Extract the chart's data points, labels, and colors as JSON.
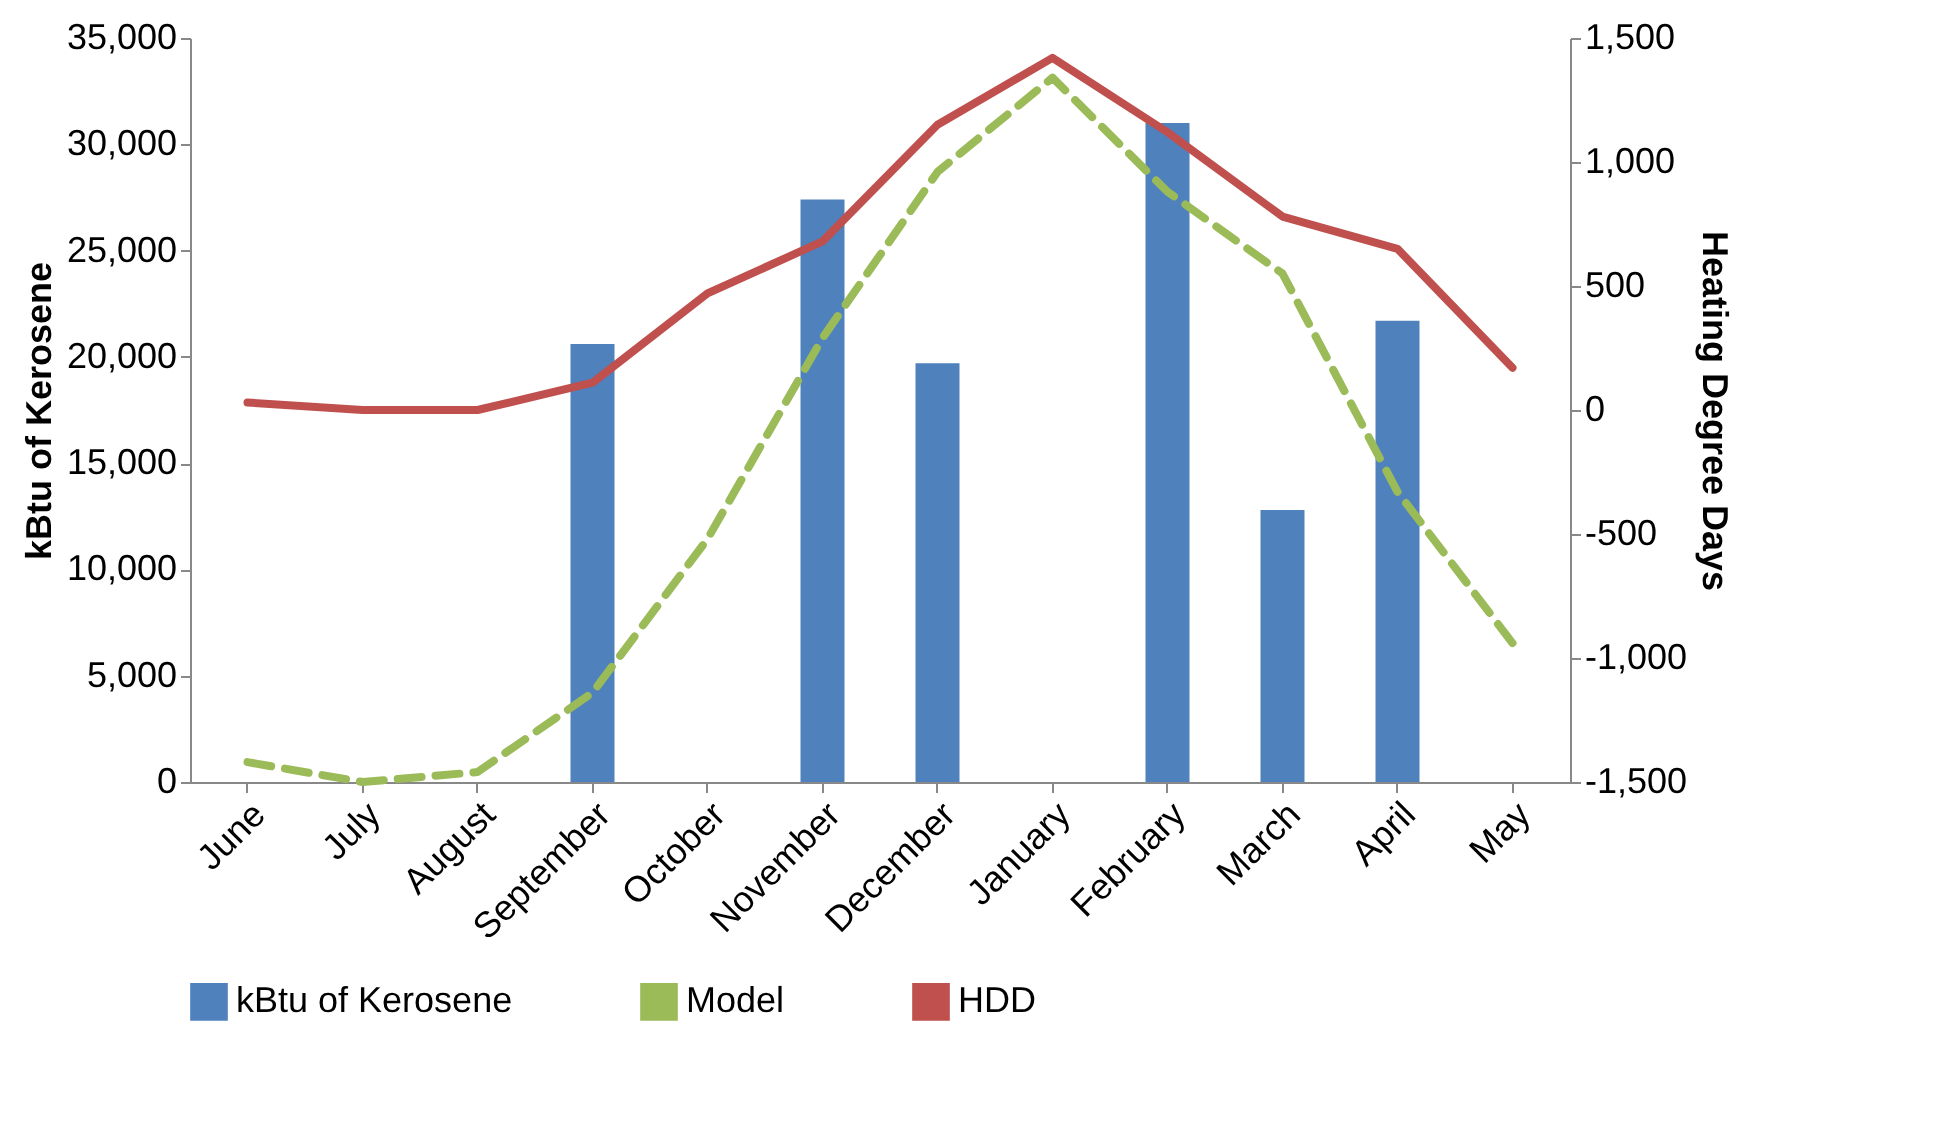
{
  "chart_data": {
    "type": "bar",
    "ylabel": "kBtu of Kerosene",
    "y2label": "Heating Degree Days",
    "categories": [
      "June",
      "July",
      "August",
      "September",
      "October",
      "November",
      "December",
      "January",
      "February",
      "March",
      "April",
      "May"
    ],
    "series": [
      {
        "name": "kBtu of Kerosene",
        "color": "#4f81bd",
        "values": [
          0,
          0,
          0,
          20600,
          0,
          27400,
          19700,
          0,
          31000,
          12800,
          21700,
          0
        ]
      },
      {
        "name": "Model",
        "type": "line",
        "axis": "y2",
        "line_style": "dashed",
        "color": "#9bbb59",
        "values": [
          -1420,
          -1500,
          -1460,
          -1140,
          -520,
          290,
          960,
          1340,
          880,
          550,
          -330,
          -940
        ]
      },
      {
        "name": "HDD",
        "type": "line",
        "axis": "y2",
        "line_style": "solid",
        "color": "#c0504d",
        "values": [
          30,
          0,
          0,
          110,
          470,
          680,
          1150,
          1420,
          1120,
          780,
          650,
          170
        ]
      }
    ],
    "ylim": [
      0,
      35000
    ],
    "yticks": [
      0,
      {
        "value": 5000,
        "label": "5,000"
      },
      {
        "value": 10000,
        "label": "10,000"
      },
      {
        "value": 15000,
        "label": "15,000"
      },
      {
        "value": 20000,
        "label": "20,000"
      },
      {
        "value": 25000,
        "label": "25,000"
      },
      {
        "value": 30000,
        "label": "30,000"
      },
      {
        "value": 35000,
        "label": "35,000"
      }
    ],
    "y2lim": [
      -1500,
      1500
    ],
    "y2ticks": [
      {
        "value": -1500,
        "label": "-1,500"
      },
      {
        "value": -1000,
        "label": "-1,000"
      },
      -500,
      0,
      500,
      {
        "value": 1000,
        "label": "1,000"
      },
      {
        "value": 1500,
        "label": "1,500"
      }
    ],
    "legend": "bottom",
    "grid": false
  }
}
